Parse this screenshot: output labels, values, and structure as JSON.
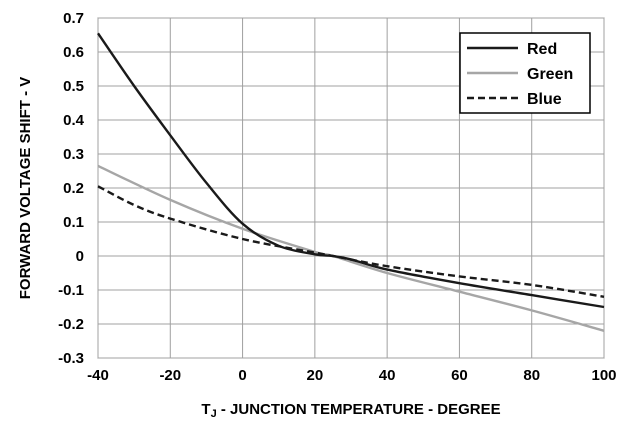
{
  "chart_data": {
    "type": "line",
    "title": "",
    "xlabel_main": "T",
    "xlabel_sub": "J",
    "xlabel_rest": " - JUNCTION TEMPERATURE - DEGREE",
    "ylabel": "FORWARD VOLTAGE SHIFT - V",
    "xlim": [
      -40,
      100
    ],
    "ylim": [
      -0.3,
      0.7
    ],
    "x_ticks": [
      "-40",
      "-20",
      "0",
      "20",
      "40",
      "60",
      "80",
      "100"
    ],
    "y_ticks": [
      "0.7",
      "0.6",
      "0.5",
      "0.4",
      "0.3",
      "0.2",
      "0.1",
      "0",
      "-0.1",
      "-0.2",
      "-0.3"
    ],
    "grid": true,
    "legend_position": "top-right",
    "series": [
      {
        "name": "Red",
        "color": "#1a1a1a",
        "dash": "solid",
        "points": [
          [
            -40,
            0.655
          ],
          [
            -30,
            0.5
          ],
          [
            -20,
            0.355
          ],
          [
            -10,
            0.215
          ],
          [
            0,
            0.095
          ],
          [
            10,
            0.03
          ],
          [
            20,
            0.005
          ],
          [
            25,
            0
          ],
          [
            30,
            -0.01
          ],
          [
            40,
            -0.04
          ],
          [
            60,
            -0.08
          ],
          [
            80,
            -0.115
          ],
          [
            100,
            -0.15
          ]
        ]
      },
      {
        "name": "Green",
        "color": "#a6a6a6",
        "dash": "solid",
        "points": [
          [
            -40,
            0.265
          ],
          [
            -20,
            0.165
          ],
          [
            0,
            0.08
          ],
          [
            20,
            0.012
          ],
          [
            25,
            0
          ],
          [
            40,
            -0.05
          ],
          [
            60,
            -0.105
          ],
          [
            80,
            -0.16
          ],
          [
            100,
            -0.22
          ]
        ]
      },
      {
        "name": "Blue",
        "color": "#1a1a1a",
        "dash": "dashed",
        "points": [
          [
            -40,
            0.205
          ],
          [
            -30,
            0.15
          ],
          [
            -20,
            0.11
          ],
          [
            0,
            0.05
          ],
          [
            20,
            0.01
          ],
          [
            25,
            0
          ],
          [
            40,
            -0.03
          ],
          [
            60,
            -0.06
          ],
          [
            80,
            -0.085
          ],
          [
            100,
            -0.12
          ]
        ]
      }
    ]
  }
}
